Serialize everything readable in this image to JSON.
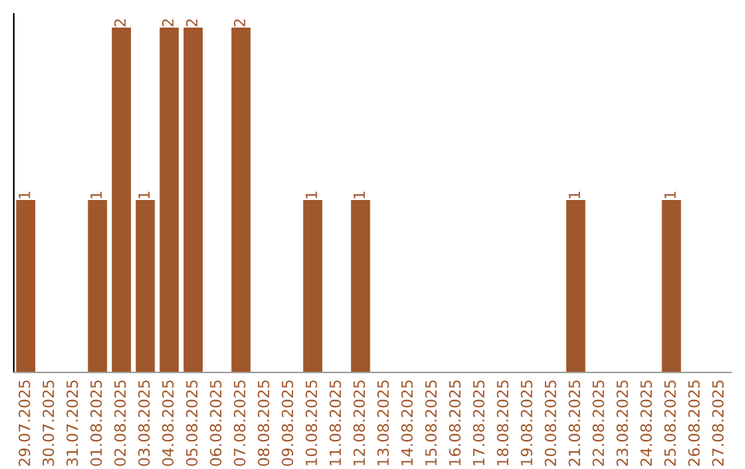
{
  "chart_data": {
    "type": "bar",
    "categories": [
      "29.07.2025",
      "30.07.2025",
      "31.07.2025",
      "01.08.2025",
      "02.08.2025",
      "03.08.2025",
      "04.08.2025",
      "05.08.2025",
      "06.08.2025",
      "07.08.2025",
      "08.08.2025",
      "09.08.2025",
      "10.08.2025",
      "11.08.2025",
      "12.08.2025",
      "13.08.2025",
      "14.08.2025",
      "15.08.2025",
      "16.08.2025",
      "17.08.2025",
      "18.08.2025",
      "19.08.2025",
      "20.08.2025",
      "21.08.2025",
      "22.08.2025",
      "23.08.2025",
      "24.08.2025",
      "25.08.2025",
      "26.08.2025",
      "27.08.2025"
    ],
    "values": [
      1,
      0,
      0,
      1,
      2,
      1,
      2,
      2,
      0,
      2,
      0,
      0,
      1,
      0,
      1,
      0,
      0,
      0,
      0,
      0,
      0,
      0,
      0,
      1,
      0,
      0,
      0,
      1,
      0,
      0
    ],
    "value_labels": [
      "1",
      null,
      null,
      "1",
      "2",
      "1",
      "2",
      "2",
      null,
      "2",
      null,
      null,
      "1",
      null,
      "1",
      null,
      null,
      null,
      null,
      null,
      null,
      null,
      null,
      "1",
      null,
      null,
      null,
      "1",
      null,
      null
    ],
    "color": "#a0572b",
    "tick_labels": "x",
    "grid": false,
    "legend": false
  }
}
